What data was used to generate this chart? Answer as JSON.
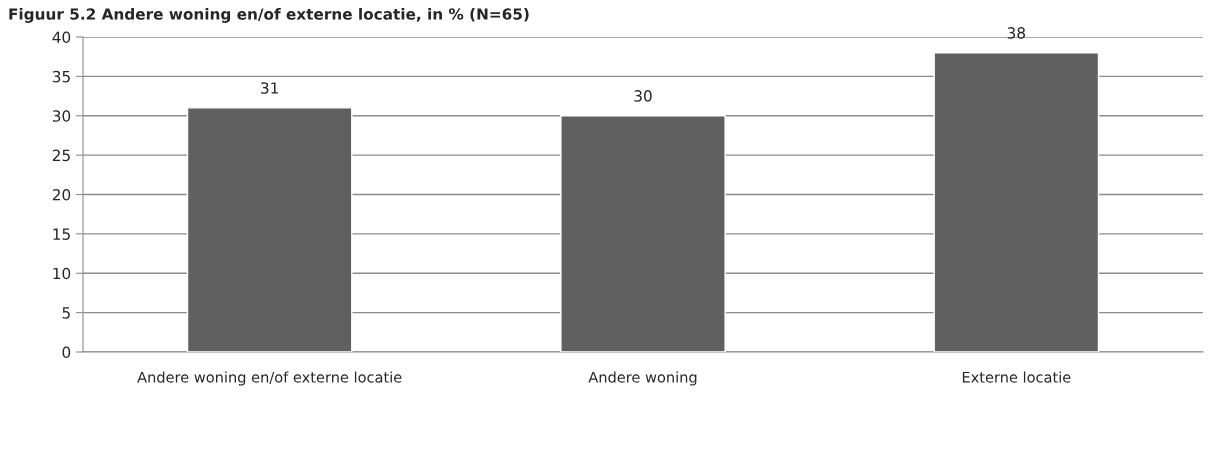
{
  "chart_data": {
    "type": "bar",
    "title": "Figuur 5.2 Andere woning en/of externe locatie, in % (N=65)",
    "categories": [
      "Andere woning en/of externe locatie",
      "Andere woning",
      "Externe locatie"
    ],
    "values": [
      31,
      30,
      38
    ],
    "color": "#606060",
    "ylim": [
      0,
      40
    ],
    "yticks": [
      0,
      5,
      10,
      15,
      20,
      25,
      30,
      35,
      40
    ],
    "grid": "y",
    "data_labels": true
  }
}
